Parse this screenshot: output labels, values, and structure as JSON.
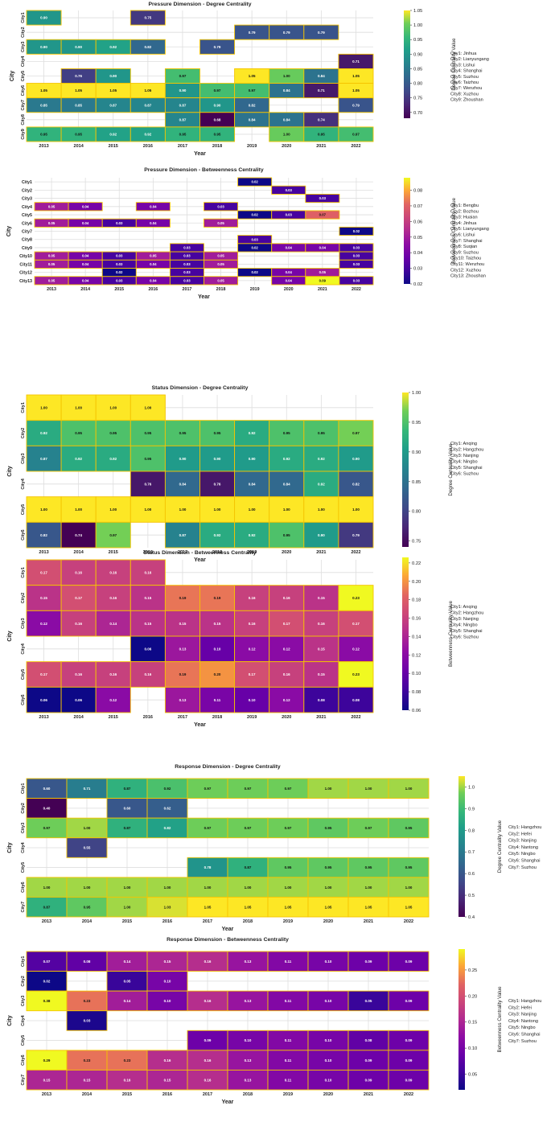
{
  "chart_data": [
    {
      "type": "heatmap",
      "title": "Pressure Dimension - Degree Centrality",
      "xlabel": "Year",
      "ylabel": "City",
      "colorbar_label": "Degree Centrality Value",
      "colormap": "viridis",
      "vlim": [
        0.68,
        1.05
      ],
      "colorbar_ticks": [
        "0.70",
        "0.75",
        "0.80",
        "0.85",
        "0.90",
        "0.95",
        "1.00",
        "1.05"
      ],
      "x": [
        "2013",
        "2014",
        "2015",
        "2016",
        "2017",
        "2018",
        "2019",
        "2020",
        "2021",
        "2022"
      ],
      "y": [
        "City1",
        "City2",
        "City3",
        "City4",
        "City5",
        "City6",
        "City7",
        "City8",
        "City9"
      ],
      "values": [
        [
          0.9,
          null,
          null,
          0.75,
          null,
          null,
          null,
          null,
          null,
          null
        ],
        [
          null,
          null,
          null,
          null,
          null,
          null,
          0.79,
          0.79,
          0.79,
          null
        ],
        [
          0.9,
          0.9,
          0.92,
          0.82,
          null,
          0.79,
          null,
          null,
          null,
          null
        ],
        [
          null,
          null,
          null,
          null,
          null,
          null,
          null,
          null,
          null,
          0.71
        ],
        [
          null,
          0.76,
          0.9,
          null,
          0.97,
          null,
          1.05,
          1.0,
          0.84,
          1.05
        ],
        [
          1.05,
          1.05,
          1.05,
          1.05,
          0.9,
          0.97,
          0.97,
          0.84,
          0.71,
          1.05
        ],
        [
          0.85,
          0.85,
          0.87,
          0.87,
          0.87,
          0.9,
          0.82,
          null,
          null,
          0.79
        ],
        [
          null,
          null,
          null,
          null,
          0.87,
          0.68,
          0.84,
          0.84,
          0.74,
          null
        ],
        [
          0.95,
          0.95,
          0.92,
          0.92,
          0.95,
          0.95,
          null,
          1.0,
          0.95,
          0.97
        ]
      ],
      "legend": [
        "City1: Jinhua",
        "City2: Lianyungang",
        "City3: Lishui",
        "City4: Shanghai",
        "City5: Suzhou",
        "City6: Taizhou",
        "City7: Wenzhou",
        "City8: Xuzhou",
        "City9: Zhoushan"
      ]
    },
    {
      "type": "heatmap",
      "title": "Pressure Dimension - Betweenness Centrality",
      "xlabel": "Year",
      "ylabel": "City",
      "colorbar_label": "Betweenness Centrality Value",
      "colormap": "plasma",
      "vlim": [
        0.02,
        0.088
      ],
      "colorbar_ticks": [
        "0.02",
        "0.03",
        "0.04",
        "0.05",
        "0.06",
        "0.07",
        "0.08"
      ],
      "x": [
        "2013",
        "2014",
        "2015",
        "2016",
        "2017",
        "2018",
        "2019",
        "2020",
        "2021",
        "2022"
      ],
      "y": [
        "City1",
        "City2",
        "City3",
        "City4",
        "City5",
        "City6",
        "City7",
        "City8",
        "City9",
        "City10",
        "City11",
        "City12",
        "City13"
      ],
      "values": [
        [
          null,
          null,
          null,
          null,
          null,
          null,
          0.02,
          null,
          null,
          null
        ],
        [
          null,
          null,
          null,
          null,
          null,
          null,
          null,
          0.03,
          null,
          null
        ],
        [
          null,
          null,
          null,
          null,
          null,
          null,
          null,
          null,
          0.03,
          null
        ],
        [
          0.05,
          0.04,
          null,
          0.04,
          null,
          0.03,
          null,
          null,
          null,
          null
        ],
        [
          null,
          null,
          null,
          null,
          null,
          null,
          0.02,
          0.03,
          0.07,
          null
        ],
        [
          0.05,
          0.04,
          0.03,
          0.04,
          null,
          0.05,
          null,
          null,
          null,
          null
        ],
        [
          null,
          null,
          null,
          null,
          null,
          null,
          null,
          null,
          null,
          0.02
        ],
        [
          null,
          null,
          null,
          null,
          null,
          null,
          0.03,
          null,
          null,
          null
        ],
        [
          null,
          null,
          null,
          null,
          0.03,
          null,
          0.02,
          0.04,
          0.04,
          0.03
        ],
        [
          0.05,
          0.04,
          0.03,
          0.05,
          0.03,
          0.05,
          null,
          null,
          null,
          0.03
        ],
        [
          0.05,
          0.04,
          0.03,
          0.04,
          0.03,
          0.05,
          null,
          null,
          null,
          0.03
        ],
        [
          null,
          null,
          0.02,
          null,
          0.03,
          null,
          0.02,
          0.04,
          0.05,
          null
        ],
        [
          0.05,
          0.04,
          0.03,
          0.04,
          0.03,
          0.05,
          null,
          0.04,
          0.09,
          0.03
        ]
      ],
      "legend": [
        "City1: Bengbu",
        "City2: Bozhou",
        "City3: Huaian",
        "City4: Jinhua",
        "City5: Lianyungang",
        "City6: Lishui",
        "City7: Shanghai",
        "City8: Suqian",
        "City9: Suzhou",
        "City10: Taizhou",
        "City11: Wenzhou",
        "City12: Xuzhou",
        "City13: Zhoushan"
      ]
    },
    {
      "type": "heatmap",
      "title": "Status Dimension - Degree Centrality",
      "xlabel": "Year",
      "ylabel": "City",
      "colorbar_label": "Degree Centrality Value",
      "colormap": "viridis",
      "vlim": [
        0.74,
        1.0
      ],
      "colorbar_ticks": [
        "0.75",
        "0.80",
        "0.85",
        "0.90",
        "0.95",
        "1.00"
      ],
      "x": [
        "2013",
        "2014",
        "2015",
        "2016",
        "2017",
        "2018",
        "2019",
        "2020",
        "2021",
        "2022"
      ],
      "y": [
        "City1",
        "City2",
        "City3",
        "City4",
        "City5",
        "City6"
      ],
      "values": [
        [
          1.0,
          1.0,
          1.0,
          1.0,
          null,
          null,
          null,
          null,
          null,
          null
        ],
        [
          0.92,
          0.95,
          0.95,
          0.95,
          0.95,
          0.95,
          0.92,
          0.95,
          0.95,
          0.97
        ],
        [
          0.87,
          0.92,
          0.92,
          0.95,
          0.9,
          0.9,
          0.9,
          0.92,
          0.92,
          0.9
        ],
        [
          null,
          null,
          null,
          0.76,
          0.84,
          0.76,
          0.84,
          0.84,
          0.92,
          0.82
        ],
        [
          1.0,
          1.0,
          1.0,
          1.0,
          1.0,
          1.0,
          1.0,
          1.0,
          1.0,
          1.0
        ],
        [
          0.82,
          0.74,
          0.97,
          null,
          0.87,
          0.92,
          0.92,
          0.95,
          0.9,
          0.79
        ]
      ],
      "legend": [
        "City1: Anqing",
        "City2: Hangzhou",
        "City3: Nanjing",
        "City4: Ningbo",
        "City5: Shanghai",
        "City6: Suzhou"
      ]
    },
    {
      "type": "heatmap",
      "title": "Status Dimension - Betweenness Centrality",
      "xlabel": "Year",
      "ylabel": "City",
      "colorbar_label": "Betweenness Centrality Value",
      "colormap": "plasma",
      "vlim": [
        0.06,
        0.226
      ],
      "colorbar_ticks": [
        "0.06",
        "0.08",
        "0.10",
        "0.12",
        "0.14",
        "0.16",
        "0.18",
        "0.20",
        "0.22"
      ],
      "x": [
        "2013",
        "2014",
        "2015",
        "2016",
        "2017",
        "2018",
        "2019",
        "2020",
        "2021",
        "2022"
      ],
      "y": [
        "City1",
        "City2",
        "City3",
        "City4",
        "City5",
        "City6"
      ],
      "values": [
        [
          0.17,
          0.16,
          0.16,
          0.16,
          null,
          null,
          null,
          null,
          null,
          null
        ],
        [
          0.15,
          0.17,
          0.16,
          0.15,
          0.19,
          0.19,
          0.16,
          0.16,
          0.15,
          0.23
        ],
        [
          0.12,
          0.16,
          0.14,
          0.15,
          0.15,
          0.15,
          0.16,
          0.17,
          0.16,
          0.17
        ],
        [
          null,
          null,
          null,
          0.06,
          0.13,
          0.1,
          0.12,
          0.12,
          0.15,
          0.12
        ],
        [
          0.17,
          0.16,
          0.16,
          0.16,
          0.19,
          0.2,
          0.17,
          0.16,
          0.15,
          0.23
        ],
        [
          0.06,
          0.06,
          0.12,
          null,
          0.13,
          0.11,
          0.1,
          0.12,
          0.08,
          0.08
        ]
      ],
      "legend": [
        "City1: Anqing",
        "City2: Hangzhou",
        "City3: Nanjing",
        "City4: Ningbo",
        "City5: Shanghai",
        "City6: Suzhou"
      ]
    },
    {
      "type": "heatmap",
      "title": "Response Dimension - Degree Centrality",
      "xlabel": "Year",
      "ylabel": "City",
      "colorbar_label": "Degree Centrality Value",
      "colormap": "viridis",
      "vlim": [
        0.4,
        1.05
      ],
      "colorbar_ticks": [
        "0.4",
        "0.5",
        "0.6",
        "0.7",
        "0.8",
        "0.9",
        "1.0"
      ],
      "x": [
        "2013",
        "2014",
        "2015",
        "2016",
        "2017",
        "2018",
        "2019",
        "2020",
        "2021",
        "2022"
      ],
      "y": [
        "City1",
        "City2",
        "City3",
        "City4",
        "City5",
        "City6",
        "City7"
      ],
      "values": [
        [
          0.6,
          0.71,
          0.87,
          0.92,
          0.97,
          0.97,
          0.97,
          1.0,
          1.0,
          1.0
        ],
        [
          0.4,
          null,
          0.6,
          0.62,
          null,
          null,
          null,
          null,
          null,
          null
        ],
        [
          0.97,
          1.0,
          0.87,
          0.82,
          0.97,
          0.97,
          0.97,
          0.95,
          0.97,
          0.95
        ],
        [
          null,
          0.55,
          null,
          null,
          null,
          null,
          null,
          null,
          null,
          null
        ],
        [
          null,
          null,
          null,
          null,
          0.78,
          0.87,
          0.95,
          0.95,
          0.95,
          0.95
        ],
        [
          1.0,
          1.0,
          1.0,
          1.0,
          1.0,
          1.0,
          1.0,
          1.0,
          1.0,
          1.0
        ],
        [
          0.87,
          0.95,
          1.0,
          1.03,
          1.05,
          1.05,
          1.05,
          1.05,
          1.05,
          1.05
        ]
      ],
      "legend": [
        "City1: Hangzhou",
        "City2: Hefei",
        "City3: Nanjing",
        "City4: Nantong",
        "City5: Ningbo",
        "City6: Shanghai",
        "City7: Suzhou"
      ]
    },
    {
      "type": "heatmap",
      "title": "Response Dimension - Betweenness Centrality",
      "xlabel": "Year",
      "ylabel": "City",
      "colorbar_label": "Betweenness Centrality Value",
      "colormap": "plasma",
      "vlim": [
        0.02,
        0.29
      ],
      "colorbar_ticks": [
        "0.05",
        "0.10",
        "0.15",
        "0.20",
        "0.25"
      ],
      "x": [
        "2013",
        "2014",
        "2015",
        "2016",
        "2017",
        "2018",
        "2019",
        "2020",
        "2021",
        "2022"
      ],
      "y": [
        "City1",
        "City2",
        "City3",
        "City4",
        "City5",
        "City6",
        "City7"
      ],
      "values": [
        [
          0.07,
          0.08,
          0.14,
          0.15,
          0.16,
          0.13,
          0.11,
          0.1,
          0.09,
          0.09
        ],
        [
          0.02,
          null,
          0.05,
          0.1,
          null,
          null,
          null,
          null,
          null,
          null
        ],
        [
          0.38,
          0.23,
          0.14,
          0.1,
          0.16,
          0.13,
          0.11,
          0.1,
          0.05,
          0.09
        ],
        [
          null,
          0.03,
          null,
          null,
          null,
          null,
          null,
          null,
          null,
          null
        ],
        [
          null,
          null,
          null,
          null,
          0.09,
          0.1,
          0.11,
          0.1,
          0.08,
          0.09
        ],
        [
          0.29,
          0.23,
          0.23,
          0.16,
          0.16,
          0.13,
          0.11,
          0.1,
          0.09,
          0.09
        ],
        [
          0.15,
          0.15,
          0.16,
          0.15,
          0.16,
          0.13,
          0.11,
          0.1,
          0.09,
          0.09
        ]
      ],
      "legend": [
        "City1: Hangzhou",
        "City2: Hefei",
        "City3: Nanjing",
        "City4: Nantong",
        "City5: Ningbo",
        "City6: Shanghai",
        "City7: Suzhou"
      ]
    }
  ]
}
